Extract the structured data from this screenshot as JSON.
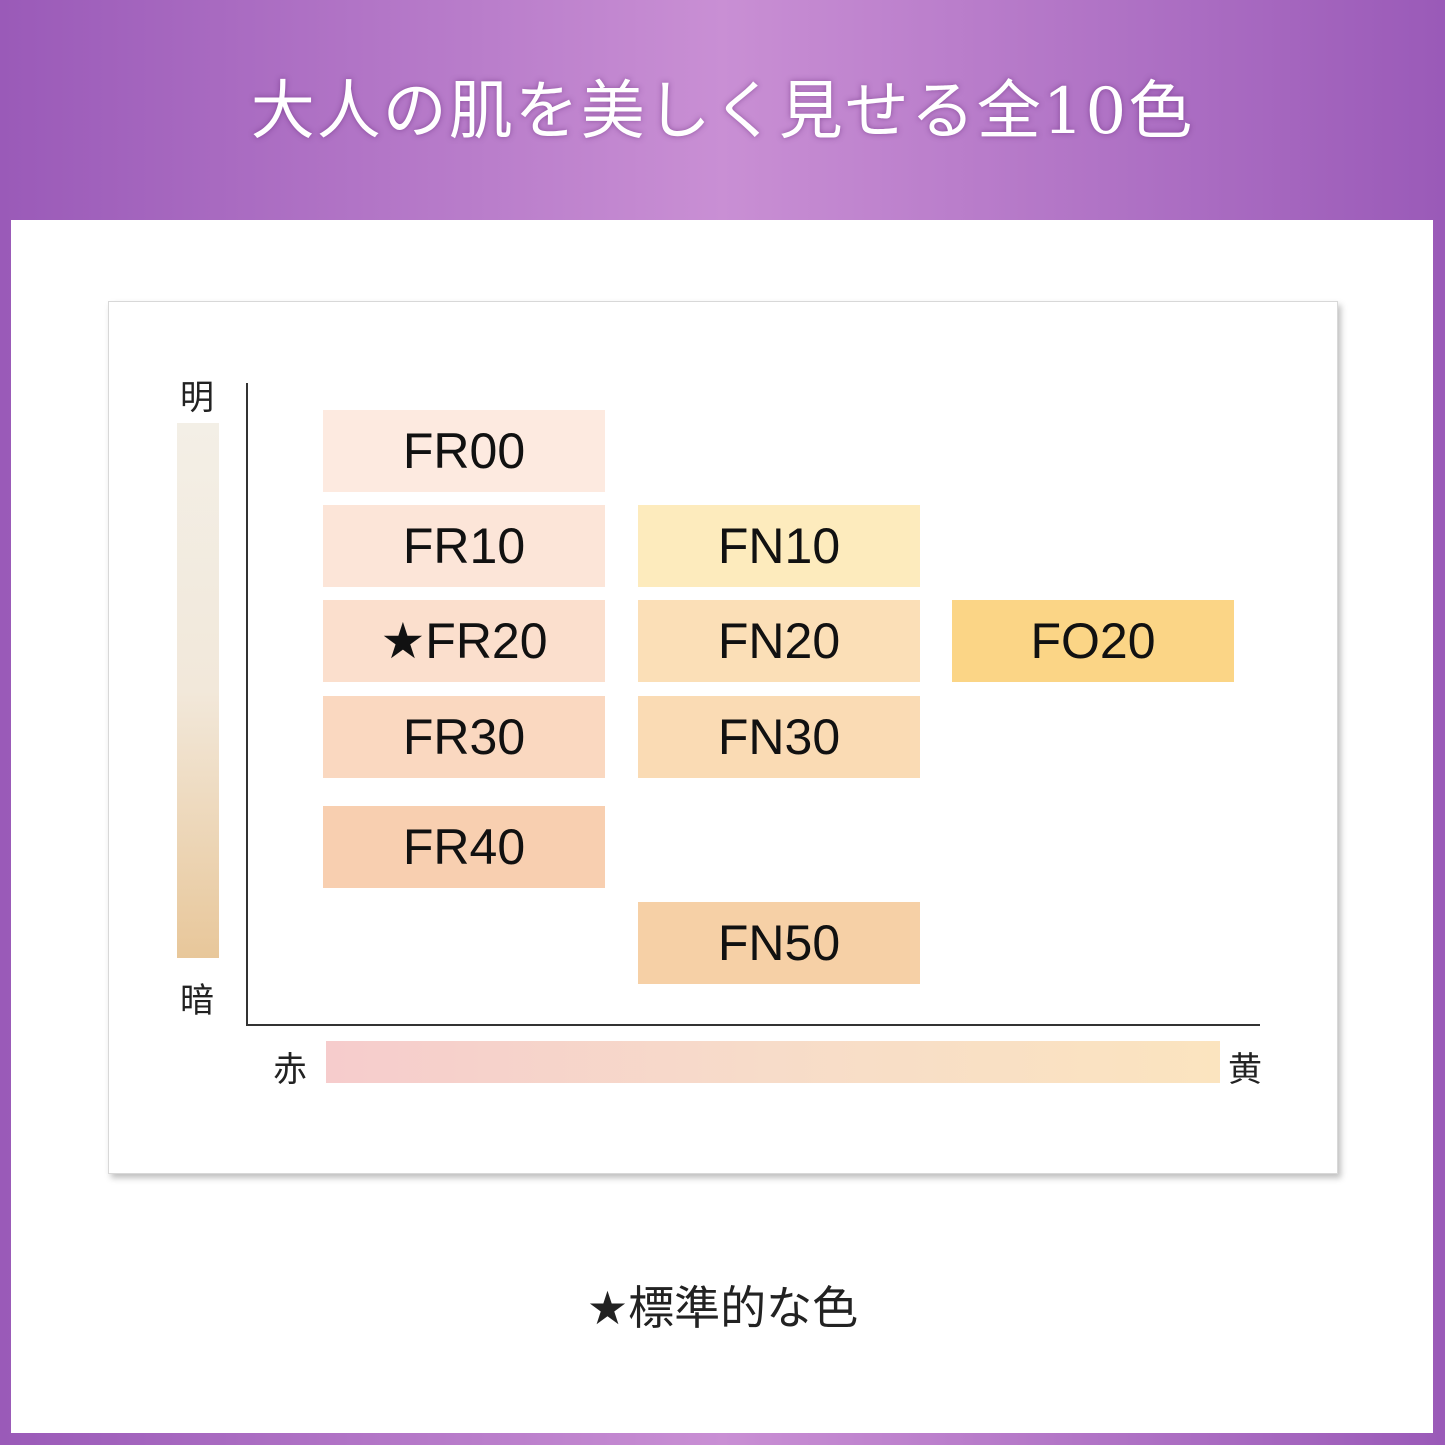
{
  "title": "大人の肌を美しく見せる全10色",
  "axes": {
    "top": "明",
    "bottom": "暗",
    "left": "赤",
    "right": "黄"
  },
  "shades": [
    {
      "label": "FR00",
      "color": "#fdeae0",
      "col": 0,
      "row": 0
    },
    {
      "label": "FR10",
      "color": "#fce5d8",
      "col": 0,
      "row": 1
    },
    {
      "label": "★FR20",
      "color": "#fbdfcd",
      "col": 0,
      "row": 2,
      "standard": true
    },
    {
      "label": "FR30",
      "color": "#fad8c0",
      "col": 0,
      "row": 3
    },
    {
      "label": "FR40",
      "color": "#f8cfb0",
      "col": 0,
      "row": 4
    },
    {
      "label": "FN10",
      "color": "#fdebbd",
      "col": 1,
      "row": 1
    },
    {
      "label": "FN20",
      "color": "#fbdfb7",
      "col": 1,
      "row": 2
    },
    {
      "label": "FN30",
      "color": "#fadbb4",
      "col": 1,
      "row": 3
    },
    {
      "label": "FN50",
      "color": "#f6d0a6",
      "col": 1,
      "row": 5
    },
    {
      "label": "FO20",
      "color": "#fbd586",
      "col": 2,
      "row": 2
    }
  ],
  "footnote": "★標準的な色"
}
